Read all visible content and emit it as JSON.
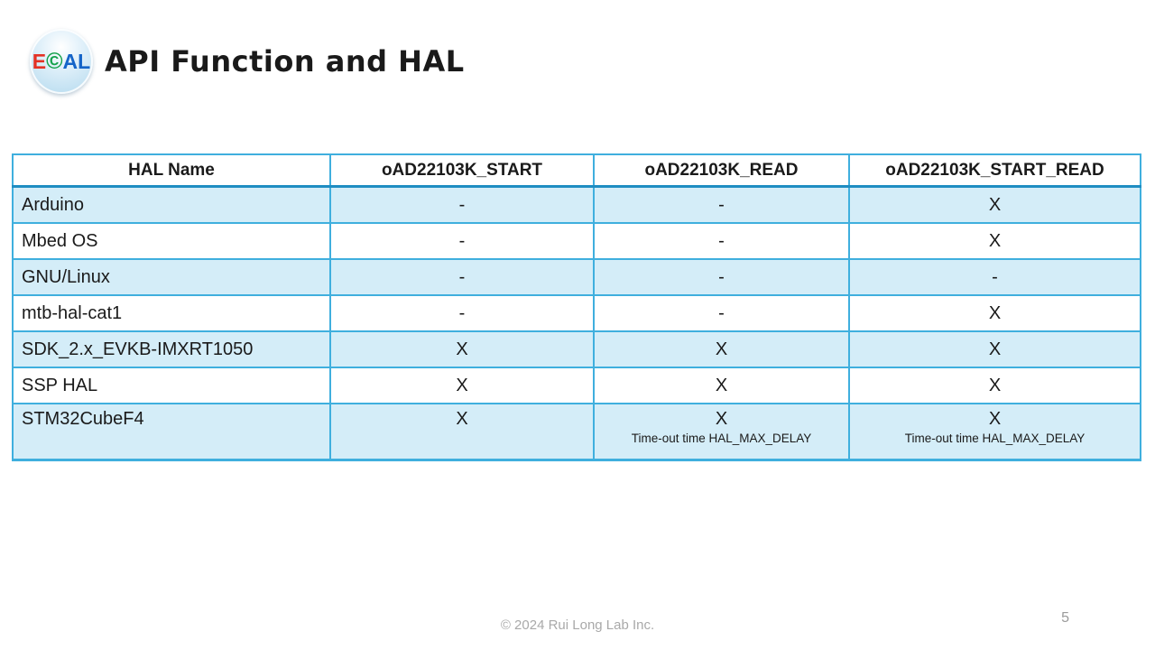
{
  "slide": {
    "title": "API Function and HAL",
    "logo": {
      "part_e": "E",
      "part_c": "©",
      "part_al": "AL"
    },
    "footer": "© 2024 Rui Long Lab Inc.",
    "page_number": "5"
  },
  "colors": {
    "accent_border": "#3fafde",
    "accent_dark": "#1f8dc2",
    "row_blue": "#d4edf8",
    "title_text": "#1a1a1a",
    "footer_text": "#a9a9a9"
  },
  "table": {
    "headers": [
      "HAL Name",
      "oAD22103K_START",
      "oAD22103K_READ",
      "oAD22103K_START_READ"
    ],
    "rows": [
      {
        "name": "Arduino",
        "start": "-",
        "read": "-",
        "start_read": "X"
      },
      {
        "name": "Mbed OS",
        "start": "-",
        "read": "-",
        "start_read": "X"
      },
      {
        "name": "GNU/Linux",
        "start": "-",
        "read": "-",
        "start_read": "-"
      },
      {
        "name": "mtb-hal-cat1",
        "start": "-",
        "read": "-",
        "start_read": "X"
      },
      {
        "name": "SDK_2.x_EVKB-IMXRT1050",
        "start": "X",
        "read": "X",
        "start_read": "X"
      },
      {
        "name": "SSP HAL",
        "start": "X",
        "read": "X",
        "start_read": "X"
      },
      {
        "name": "STM32CubeF4",
        "start": "X",
        "read": "X",
        "read_note": "Time-out time HAL_MAX_DELAY",
        "start_read": "X",
        "start_read_note": "Time-out time HAL_MAX_DELAY"
      }
    ]
  }
}
